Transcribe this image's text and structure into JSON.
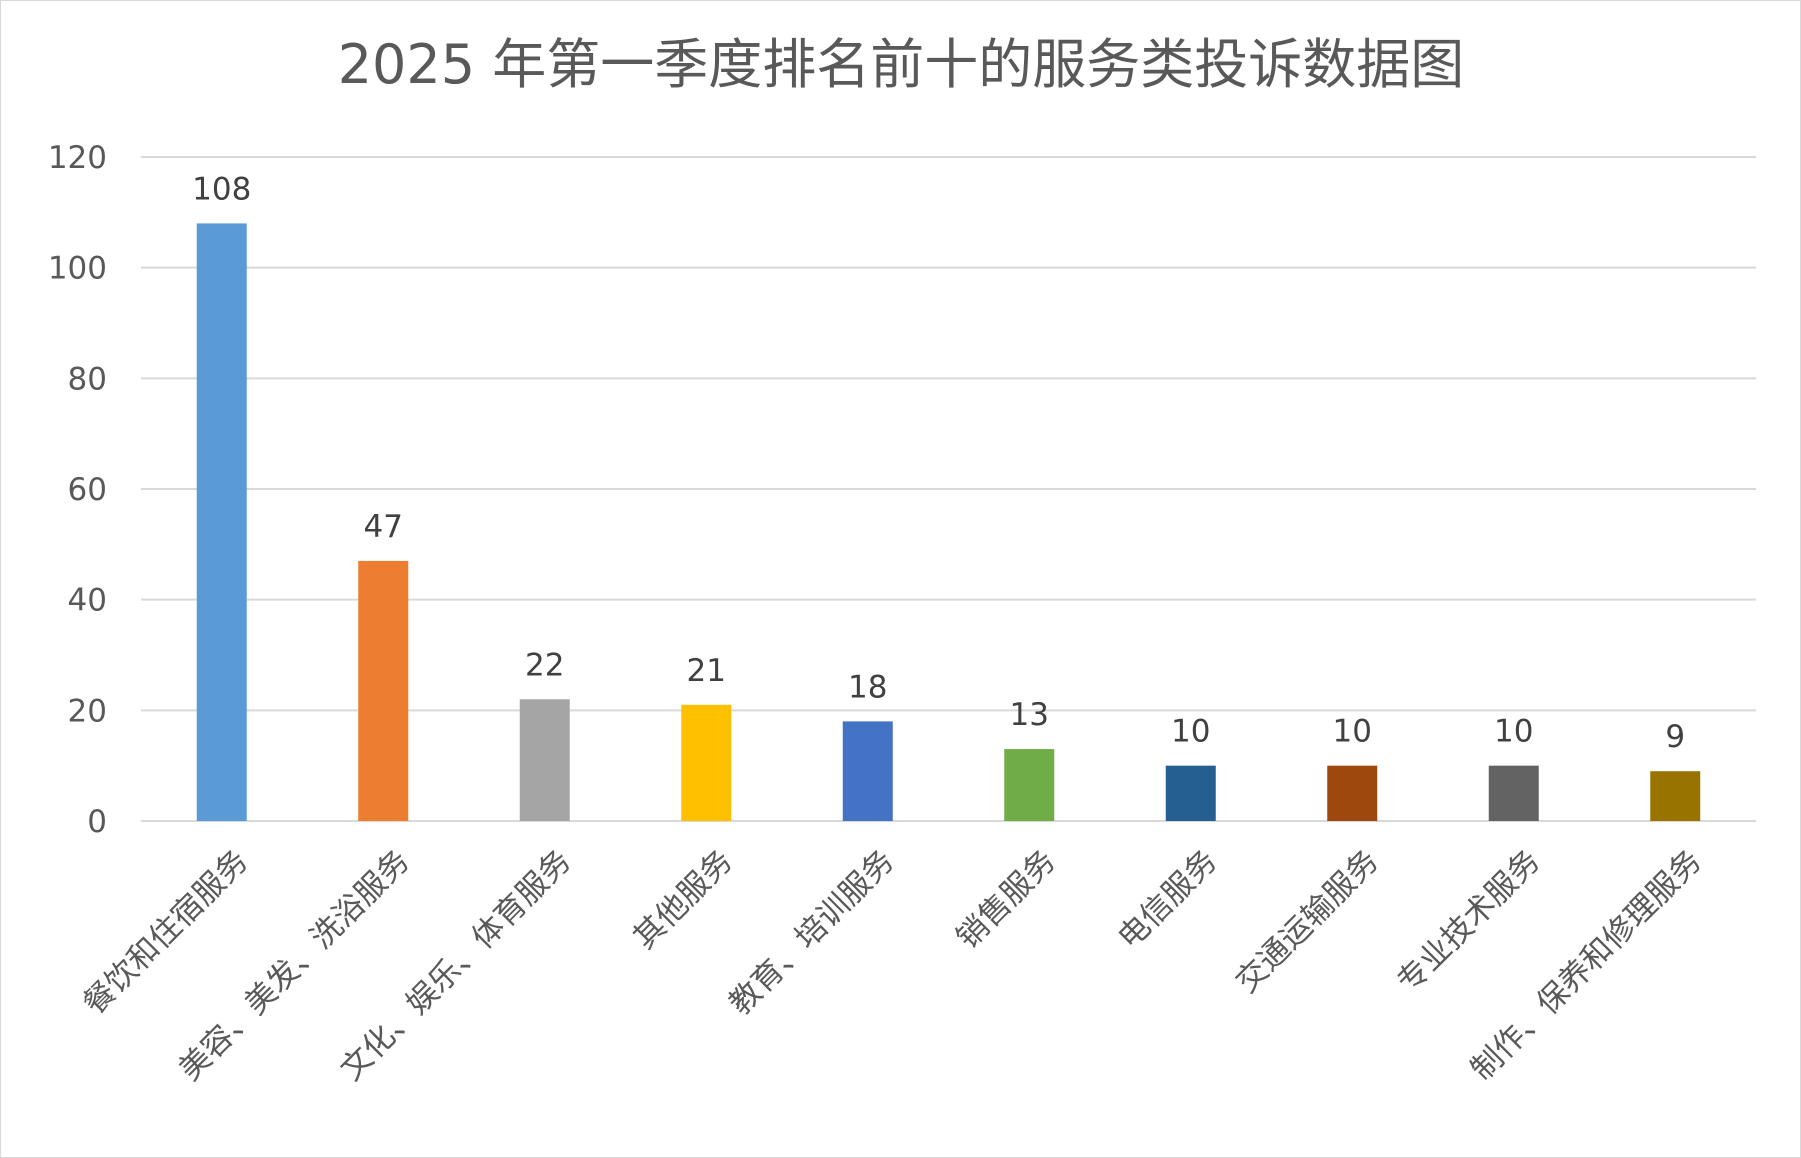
{
  "chart_data": {
    "type": "bar",
    "title": "2025 年第一季度排名前十的服务类投诉数据图",
    "categories": [
      "餐饮和住宿服务",
      "美容、美发、洗浴服务",
      "文化、娱乐、体育服务",
      "其他服务",
      "教育、培训服务",
      "销售服务",
      "电信服务",
      "交通运输服务",
      "专业技术服务",
      "制作、保养和修理服务"
    ],
    "values": [
      108,
      47,
      22,
      21,
      18,
      13,
      10,
      10,
      10,
      9
    ],
    "colors": [
      "#5b9bd5",
      "#ed7d31",
      "#a5a5a5",
      "#ffc000",
      "#4472c4",
      "#70ad47",
      "#255e91",
      "#9e480e",
      "#636363",
      "#997300"
    ],
    "ylim": [
      0,
      120
    ],
    "yticks": [
      0,
      20,
      40,
      60,
      80,
      100,
      120
    ],
    "xlabel": "",
    "ylabel": "",
    "grid": true,
    "legend": "none",
    "data_labels": true
  }
}
